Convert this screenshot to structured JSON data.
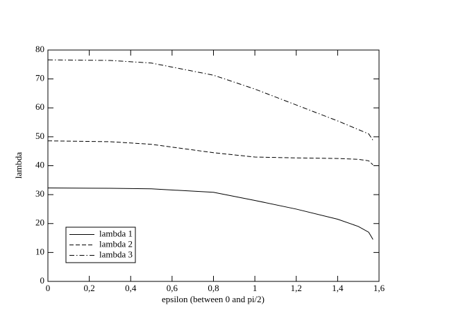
{
  "chart_data": {
    "type": "line",
    "xlabel": "epsilon (between 0 and pi/2)",
    "ylabel": "lambda",
    "x": [
      0,
      0.3,
      0.5,
      0.8,
      1.0,
      1.2,
      1.4,
      1.5,
      1.55,
      1.5708
    ],
    "series": [
      {
        "name": "lambda 1",
        "color": "#000000",
        "dash": "solid",
        "values": [
          32.3,
          32.2,
          32,
          30.8,
          28,
          25,
          21.5,
          19,
          17,
          14.5
        ]
      },
      {
        "name": "lambda 2",
        "color": "#000000",
        "dash": "dashed",
        "values": [
          48.6,
          48.3,
          47.4,
          44.5,
          43,
          42.7,
          42.5,
          42.2,
          41.7,
          40.3
        ]
      },
      {
        "name": "lambda 3",
        "color": "#000000",
        "dash": "dashdot",
        "values": [
          76.6,
          76.4,
          75.5,
          71.3,
          66.5,
          61,
          55.5,
          52.5,
          51,
          48.8
        ]
      }
    ],
    "xlim": [
      0,
      1.6
    ],
    "xticks": [
      0,
      {
        "value": 0.2,
        "label": "0,2"
      },
      {
        "value": 0.4,
        "label": "0,4"
      },
      {
        "value": 0.6,
        "label": "0,6"
      },
      {
        "value": 0.8,
        "label": "0,8"
      },
      1,
      {
        "value": 1.2,
        "label": "1,2"
      },
      {
        "value": 1.4,
        "label": "1,4"
      },
      {
        "value": 1.6,
        "label": "1,6"
      }
    ],
    "ylim": [
      0,
      80
    ],
    "yticks": [
      0,
      10,
      20,
      30,
      40,
      50,
      60,
      70,
      80
    ],
    "grid": false,
    "legend": "lower-left"
  }
}
